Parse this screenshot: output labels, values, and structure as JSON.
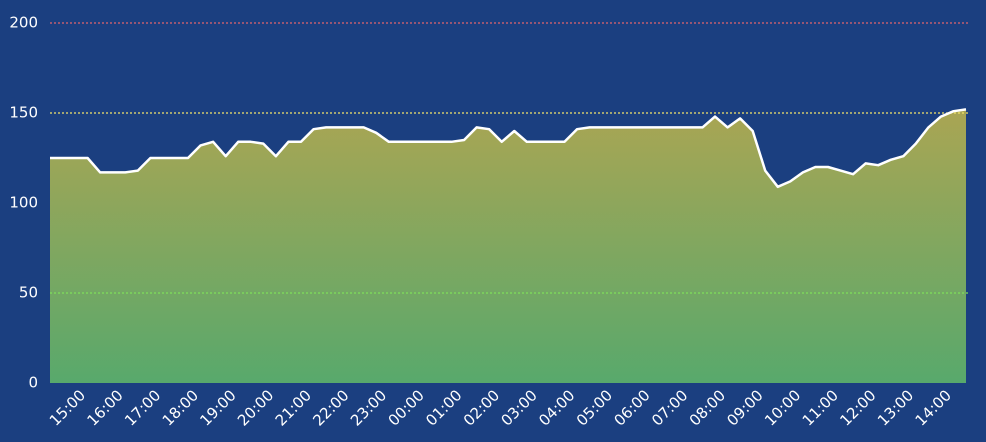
{
  "chart_data": {
    "type": "area",
    "categories": [
      null,
      null,
      "15:00",
      null,
      null,
      "16:00",
      null,
      null,
      "17:00",
      null,
      null,
      "18:00",
      null,
      null,
      "19:00",
      null,
      null,
      "20:00",
      null,
      null,
      "21:00",
      null,
      null,
      "22:00",
      null,
      null,
      "23:00",
      null,
      null,
      "00:00",
      null,
      null,
      "01:00",
      null,
      null,
      "02:00",
      null,
      null,
      "03:00",
      null,
      null,
      "04:00",
      null,
      null,
      "05:00",
      null,
      null,
      "06:00",
      null,
      null,
      "07:00",
      null,
      null,
      "08:00",
      null,
      null,
      "09:00",
      null,
      null,
      "10:00",
      null,
      null,
      "11:00",
      null,
      null,
      "12:00",
      null,
      null,
      "13:00",
      null,
      null,
      "14:00",
      null,
      null
    ],
    "values": [
      125,
      125,
      125,
      125,
      117,
      117,
      117,
      118,
      125,
      125,
      125,
      125,
      132,
      134,
      126,
      134,
      134,
      133,
      126,
      134,
      134,
      141,
      142,
      142,
      142,
      142,
      139,
      134,
      134,
      134,
      134,
      134,
      134,
      135,
      142,
      141,
      134,
      140,
      134,
      134,
      134,
      134,
      141,
      142,
      142,
      142,
      142,
      142,
      142,
      142,
      142,
      142,
      142,
      148,
      142,
      147,
      140,
      118,
      109,
      112,
      117,
      120,
      120,
      118,
      116,
      122,
      121,
      124,
      126,
      133,
      142,
      148,
      151,
      152
    ],
    "line_color": "#ffffff",
    "fill_gradient": [
      "#aaa553",
      "#58a96c"
    ],
    "ylim": [
      0,
      200
    ],
    "yticks": [
      0,
      50,
      100,
      150,
      200
    ],
    "grid_colors": [
      null,
      "#7ee05a",
      null,
      "#f2e36a",
      "#e0646e"
    ]
  }
}
